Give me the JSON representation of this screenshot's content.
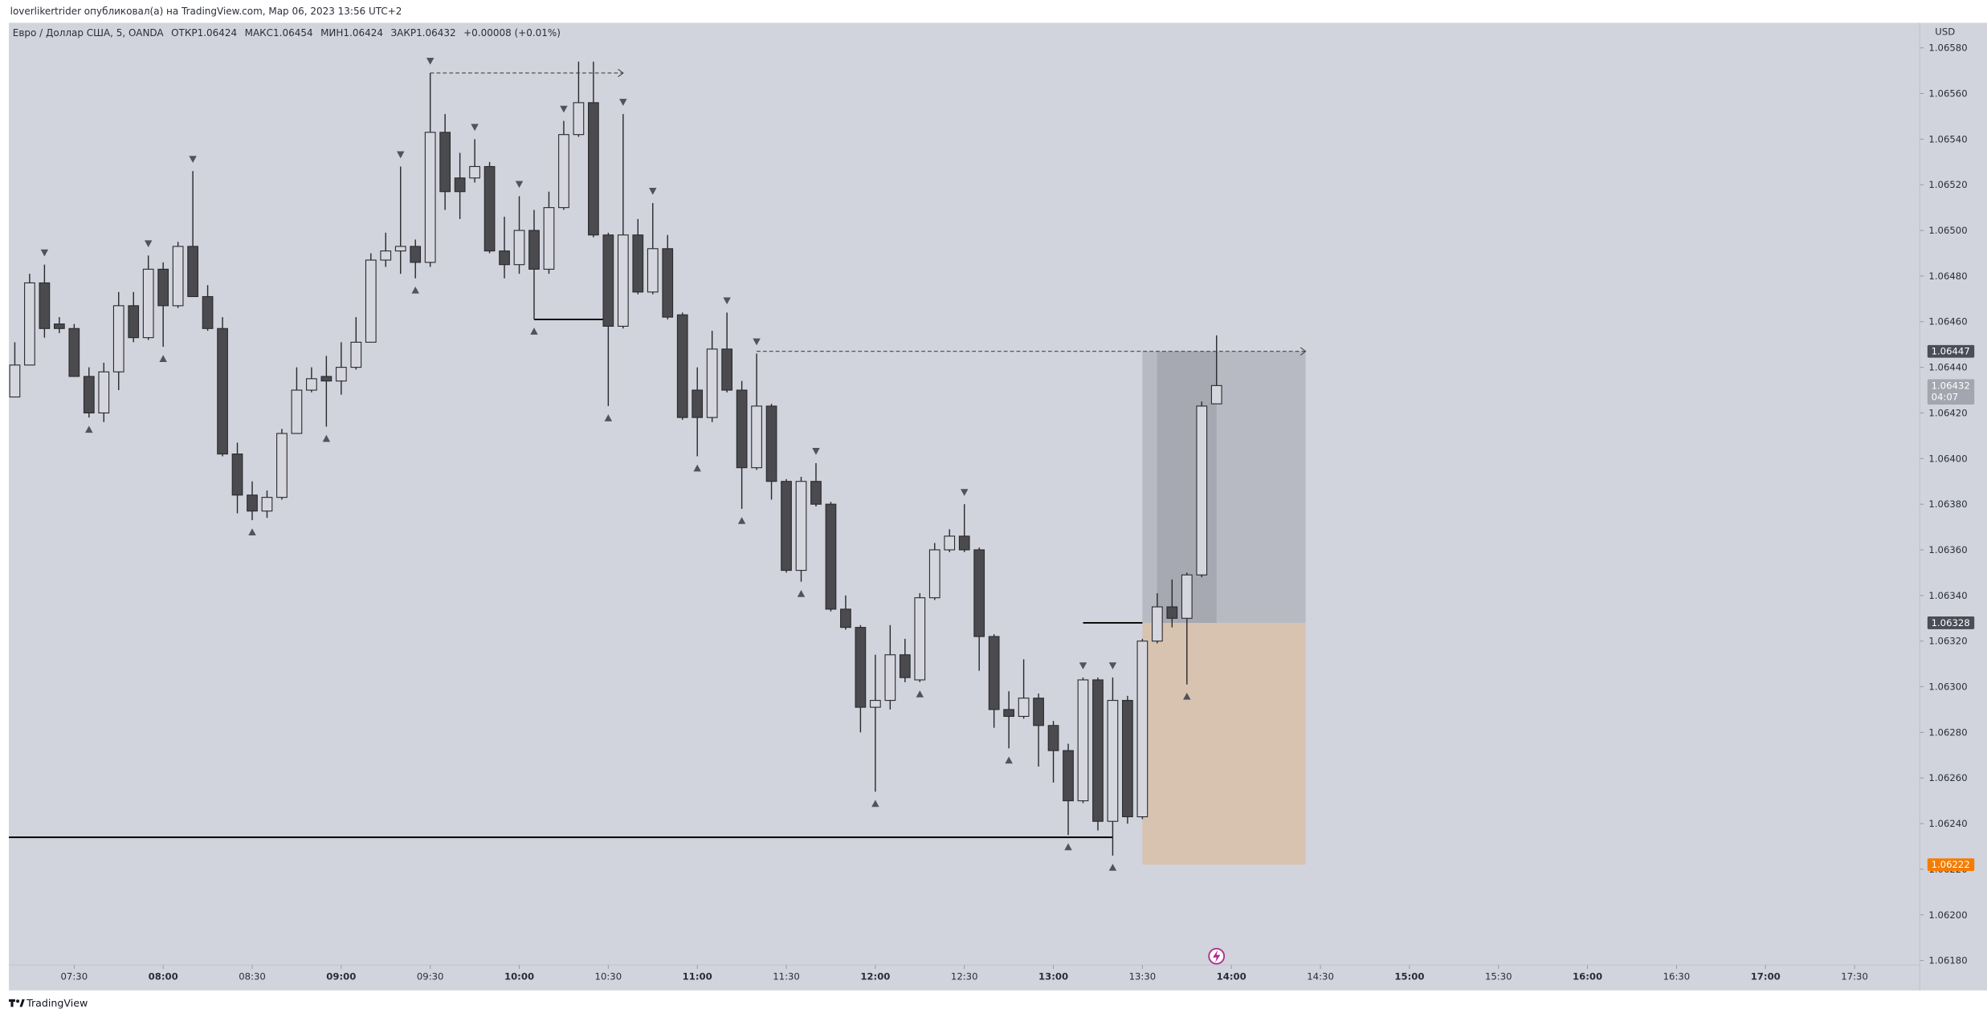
{
  "chart_data": {
    "type": "candlestick",
    "header": {
      "published": "loverlikertrider опубликовал(а) на TradingView.com, Мар 06, 2023 13:56 UTC+2",
      "symbol": "Евро / Доллар США, 5, OANDA",
      "open_label": "ОТКР",
      "high_label": "МАКС",
      "low_label": "МИН",
      "close_label": "ЗАКР",
      "change": "+0.00008 (+0.01%)"
    },
    "currency": "USD",
    "countdown": "04:07",
    "watermark": "TradingView",
    "up_color": "#d6d7de",
    "down_color": "#4a4a4f",
    "x": [
      "07:10",
      "07:15",
      "07:20",
      "07:25",
      "07:30",
      "07:35",
      "07:40",
      "07:45",
      "07:50",
      "07:55",
      "08:00",
      "08:05",
      "08:10",
      "08:15",
      "08:20",
      "08:25",
      "08:30",
      "08:35",
      "08:40",
      "08:45",
      "08:50",
      "08:55",
      "09:00",
      "09:05",
      "09:10",
      "09:15",
      "09:20",
      "09:25",
      "09:30",
      "09:35",
      "09:40",
      "09:45",
      "09:50",
      "09:55",
      "10:00",
      "10:05",
      "10:10",
      "10:15",
      "10:20",
      "10:25",
      "10:30",
      "10:35",
      "10:40",
      "10:45",
      "10:50",
      "10:55",
      "11:00",
      "11:05",
      "11:10",
      "11:15",
      "11:20",
      "11:25",
      "11:30",
      "11:35",
      "11:40",
      "11:45",
      "11:50",
      "11:55",
      "12:00",
      "12:05",
      "12:10",
      "12:15",
      "12:20",
      "12:25",
      "12:30",
      "12:35",
      "12:40",
      "12:45",
      "12:50",
      "12:55",
      "13:00",
      "13:05",
      "13:10",
      "13:15",
      "13:20",
      "13:25",
      "13:30",
      "13:35",
      "13:40",
      "13:45",
      "13:50",
      "13:55"
    ],
    "open": [
      1.06427,
      1.06441,
      1.06477,
      1.06459,
      1.06457,
      1.06436,
      1.0642,
      1.06438,
      1.06467,
      1.06453,
      1.06483,
      1.06467,
      1.06493,
      1.06471,
      1.06457,
      1.06402,
      1.06384,
      1.06377,
      1.06383,
      1.06411,
      1.0643,
      1.06436,
      1.06434,
      1.0644,
      1.06451,
      1.06487,
      1.06491,
      1.06493,
      1.06486,
      1.06543,
      1.06523,
      1.06523,
      1.06528,
      1.06491,
      1.06485,
      1.065,
      1.06483,
      1.0651,
      1.06542,
      1.06556,
      1.06498,
      1.06458,
      1.06498,
      1.06473,
      1.06492,
      1.06463,
      1.0643,
      1.06418,
      1.06448,
      1.0643,
      1.06396,
      1.06423,
      1.0639,
      1.06351,
      1.0639,
      1.0638,
      1.06334,
      1.06326,
      1.06291,
      1.06294,
      1.06314,
      1.06303,
      1.06339,
      1.0636,
      1.06366,
      1.0636,
      1.06322,
      1.0629,
      1.06287,
      1.06295,
      1.06283,
      1.06272,
      1.0625,
      1.06303,
      1.06241,
      1.06294,
      1.06243,
      1.0632,
      1.06335,
      1.0633,
      1.06349,
      1.06424
    ],
    "high": [
      1.06451,
      1.06481,
      1.06485,
      1.06462,
      1.06459,
      1.0644,
      1.06442,
      1.06473,
      1.06473,
      1.06489,
      1.06486,
      1.06495,
      1.06526,
      1.06476,
      1.06462,
      1.06407,
      1.0639,
      1.06386,
      1.06413,
      1.0644,
      1.0644,
      1.06445,
      1.06451,
      1.06462,
      1.0649,
      1.06499,
      1.06528,
      1.06496,
      1.06569,
      1.06551,
      1.06534,
      1.0654,
      1.0653,
      1.06506,
      1.06515,
      1.06509,
      1.06517,
      1.06548,
      1.06574,
      1.06574,
      1.06499,
      1.06551,
      1.06505,
      1.06512,
      1.06498,
      1.06464,
      1.0644,
      1.06456,
      1.06464,
      1.06434,
      1.06446,
      1.06424,
      1.06391,
      1.06392,
      1.06398,
      1.06381,
      1.0634,
      1.06327,
      1.06314,
      1.06327,
      1.06321,
      1.06341,
      1.06363,
      1.06369,
      1.0638,
      1.06361,
      1.06323,
      1.06298,
      1.06312,
      1.06297,
      1.06285,
      1.06275,
      1.06304,
      1.06304,
      1.06304,
      1.06296,
      1.06321,
      1.06341,
      1.06347,
      1.0635,
      1.06425,
      1.06454
    ],
    "low": [
      1.06427,
      1.06441,
      1.06453,
      1.06455,
      1.06436,
      1.06418,
      1.06416,
      1.0643,
      1.06451,
      1.06452,
      1.06449,
      1.06466,
      1.06471,
      1.06456,
      1.06401,
      1.06376,
      1.06373,
      1.06374,
      1.06382,
      1.06411,
      1.06429,
      1.06414,
      1.06428,
      1.06439,
      1.06451,
      1.06484,
      1.06481,
      1.06479,
      1.06484,
      1.06509,
      1.06505,
      1.06521,
      1.0649,
      1.06479,
      1.06481,
      1.06461,
      1.06481,
      1.06509,
      1.06541,
      1.06497,
      1.06423,
      1.06457,
      1.06472,
      1.06472,
      1.06461,
      1.06417,
      1.06401,
      1.06416,
      1.06429,
      1.06378,
      1.06395,
      1.06382,
      1.0635,
      1.06346,
      1.06379,
      1.06333,
      1.06325,
      1.0628,
      1.06254,
      1.0629,
      1.06302,
      1.06302,
      1.06338,
      1.06359,
      1.06359,
      1.06307,
      1.06282,
      1.06273,
      1.06286,
      1.06265,
      1.06258,
      1.06235,
      1.06249,
      1.06237,
      1.06226,
      1.0624,
      1.06242,
      1.06319,
      1.06326,
      1.06301,
      1.06348,
      1.06424
    ],
    "close": [
      1.06441,
      1.06477,
      1.06457,
      1.06457,
      1.06436,
      1.0642,
      1.06438,
      1.06467,
      1.06453,
      1.06483,
      1.06467,
      1.06493,
      1.06471,
      1.06457,
      1.06402,
      1.06384,
      1.06377,
      1.06383,
      1.06411,
      1.0643,
      1.06435,
      1.06434,
      1.0644,
      1.06451,
      1.06487,
      1.06491,
      1.06493,
      1.06486,
      1.06543,
      1.06517,
      1.06517,
      1.06528,
      1.06491,
      1.06485,
      1.065,
      1.06483,
      1.0651,
      1.06542,
      1.06556,
      1.06498,
      1.06458,
      1.06498,
      1.06473,
      1.06492,
      1.06462,
      1.06418,
      1.06418,
      1.06448,
      1.0643,
      1.06396,
      1.06423,
      1.0639,
      1.06351,
      1.0639,
      1.0638,
      1.06334,
      1.06326,
      1.06291,
      1.06294,
      1.06314,
      1.06304,
      1.06339,
      1.0636,
      1.06366,
      1.0636,
      1.06322,
      1.0629,
      1.06287,
      1.06295,
      1.06283,
      1.06272,
      1.0625,
      1.06303,
      1.06241,
      1.06294,
      1.06243,
      1.0632,
      1.06335,
      1.0633,
      1.06349,
      1.06423,
      1.06432
    ],
    "marks_above": [
      "07:20",
      "07:55",
      "08:10",
      "09:20",
      "09:30",
      "09:45",
      "10:00",
      "10:15",
      "10:35",
      "10:45",
      "11:10",
      "11:20",
      "11:40",
      "12:30",
      "13:10",
      "13:20"
    ],
    "marks_below": [
      "07:35",
      "08:00",
      "08:30",
      "08:55",
      "09:25",
      "10:05",
      "10:30",
      "11:00",
      "11:15",
      "11:35",
      "12:00",
      "12:15",
      "12:45",
      "13:05",
      "13:20",
      "13:45"
    ],
    "lines": [
      {
        "price": 1.06569,
        "from": "09:30",
        "to": "10:35",
        "style": "dashed",
        "arrow": true
      },
      {
        "price": 1.06461,
        "from": "10:05",
        "to": "10:30",
        "style": "solid",
        "arrow": false
      },
      {
        "price": 1.06447,
        "from": "11:20",
        "to": "14:25",
        "style": "dashed",
        "arrow": true
      },
      {
        "price": 1.06328,
        "from": "13:10",
        "to": "13:30",
        "style": "solid",
        "arrow": false
      },
      {
        "price": 1.06234,
        "from": "07:08",
        "to": "13:20",
        "style": "solid",
        "arrow": false
      }
    ],
    "position": {
      "entry": 1.06328,
      "target": 1.06447,
      "stop": 1.06222,
      "start": "13:30",
      "end": "14:25",
      "active_from": "13:35",
      "active_to": "13:55"
    },
    "xlim": [
      "07:08",
      "17:52"
    ],
    "xticks": [
      "07:30",
      "08:00",
      "08:30",
      "09:00",
      "09:30",
      "10:00",
      "10:30",
      "11:00",
      "11:30",
      "12:00",
      "12:30",
      "13:00",
      "13:30",
      "14:00",
      "14:30",
      "15:00",
      "15:30",
      "16:00",
      "16:30",
      "17:00",
      "17:30"
    ],
    "ylim": [
      1.06178,
      1.06591
    ],
    "yticks": [
      {
        "value": 1.0618,
        "label": "1.06180"
      },
      {
        "value": 1.062,
        "label": "1.06200"
      },
      {
        "value": 1.0622,
        "label": "1.06220"
      },
      {
        "value": 1.0624,
        "label": "1.06240"
      },
      {
        "value": 1.0626,
        "label": "1.06260"
      },
      {
        "value": 1.0628,
        "label": "1.06280"
      },
      {
        "value": 1.063,
        "label": "1.06300"
      },
      {
        "value": 1.0632,
        "label": "1.06320"
      },
      {
        "value": 1.0634,
        "label": "1.06340"
      },
      {
        "value": 1.0636,
        "label": "1.06360"
      },
      {
        "value": 1.0638,
        "label": "1.06380"
      },
      {
        "value": 1.064,
        "label": "1.06400"
      },
      {
        "value": 1.0642,
        "label": "1.06420"
      },
      {
        "value": 1.0644,
        "label": "1.06440"
      },
      {
        "value": 1.0646,
        "label": "1.06460"
      },
      {
        "value": 1.0648,
        "label": "1.06480"
      },
      {
        "value": 1.065,
        "label": "1.06500"
      },
      {
        "value": 1.0652,
        "label": "1.06520"
      },
      {
        "value": 1.0654,
        "label": "1.06540"
      },
      {
        "value": 1.0656,
        "label": "1.06560"
      },
      {
        "value": 1.0658,
        "label": "1.06580"
      }
    ],
    "grid": false
  }
}
